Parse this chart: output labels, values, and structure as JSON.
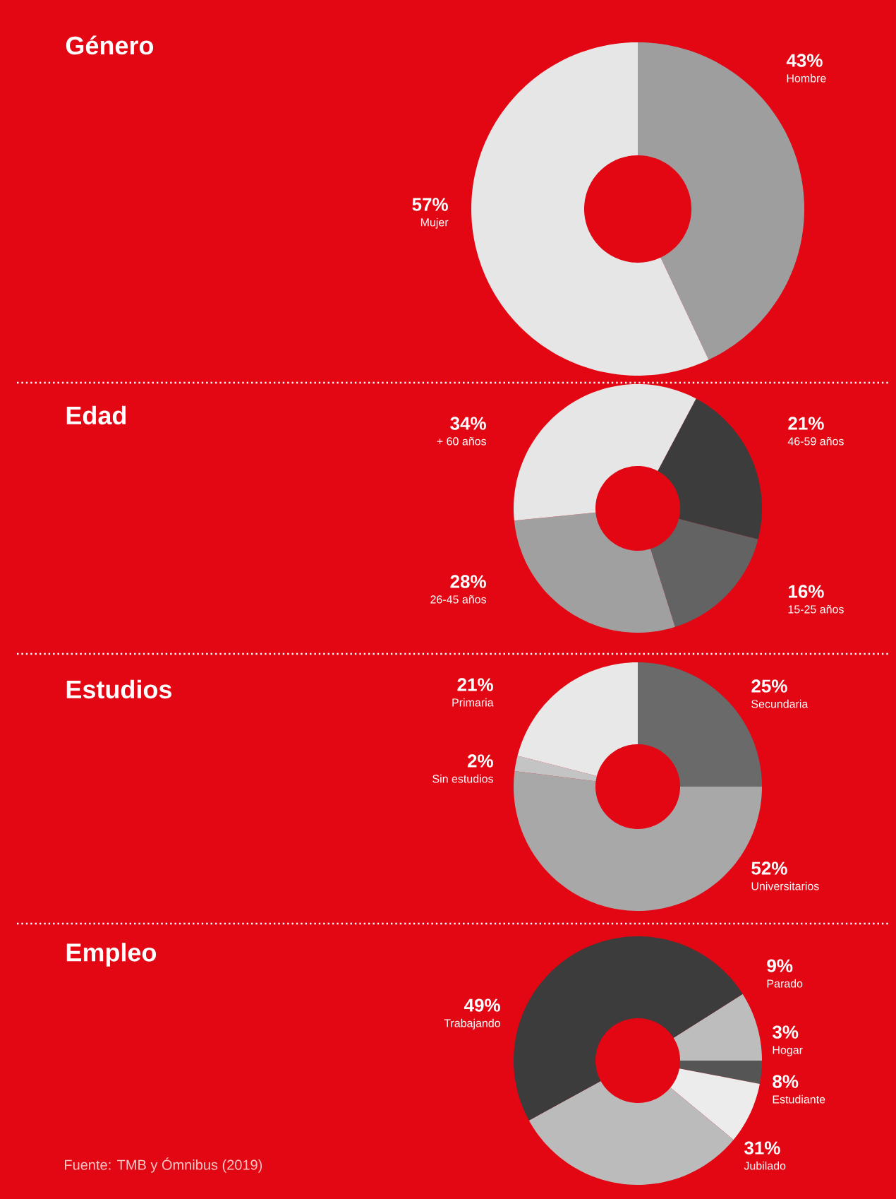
{
  "chart_data": [
    {
      "type": "donut",
      "title": "Género",
      "categories": [
        "Hombre",
        "Mujer"
      ],
      "values": [
        43,
        57
      ],
      "colors": [
        "#9e9e9e",
        "#e6e6e6"
      ],
      "value_labels": [
        "43%",
        "57%"
      ]
    },
    {
      "type": "donut",
      "title": "Edad",
      "categories": [
        "46-59 años",
        "15-25 años",
        "26-45 años",
        "+ 60 años"
      ],
      "values": [
        21,
        16,
        28,
        34
      ],
      "colors": [
        "#3c3c3c",
        "#636363",
        "#a0a0a0",
        "#e6e6e6"
      ],
      "value_labels": [
        "21%",
        "16%",
        "28%",
        "34%"
      ]
    },
    {
      "type": "donut",
      "title": "Estudios",
      "categories": [
        "Secundaria",
        "Universitarios",
        "Sin estudios",
        "Primaria"
      ],
      "values": [
        25,
        52,
        2,
        21
      ],
      "colors": [
        "#6a6a6a",
        "#a8a8a8",
        "#c4c4c4",
        "#e8e8e8"
      ],
      "value_labels": [
        "25%",
        "52%",
        "2%",
        "21%"
      ]
    },
    {
      "type": "donut",
      "title": "Empleo",
      "categories": [
        "Parado",
        "Hogar",
        "Estudiante",
        "Jubilado",
        "Trabajando"
      ],
      "values": [
        9,
        3,
        8,
        31,
        49
      ],
      "colors": [
        "#bdbdbd",
        "#555555",
        "#ececec",
        "#bbbbbb",
        "#3c3c3c"
      ],
      "value_labels": [
        "9%",
        "3%",
        "8%",
        "31%",
        "49%"
      ],
      "annotations": [
        "Fuente: TMB y Ómnibus (2019)"
      ]
    }
  ]
}
